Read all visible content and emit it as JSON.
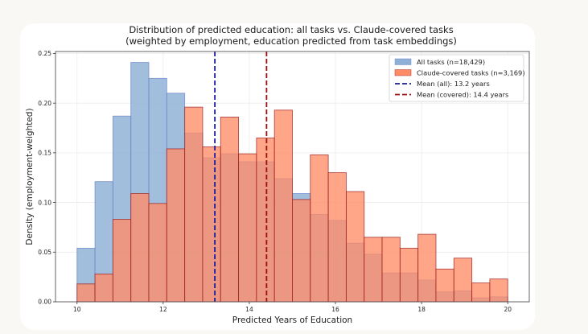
{
  "chart_data": {
    "type": "bar",
    "title": "Distribution of predicted education: all tasks vs. Claude-covered tasks",
    "subtitle": "(weighted by employment, education predicted from task embeddings)",
    "xlabel": "Predicted Years of Education",
    "ylabel": "Density (employment-weighted)",
    "xlim": [
      9.5,
      20.5
    ],
    "ylim": [
      0,
      0.252
    ],
    "xticks": [
      10,
      12,
      14,
      16,
      18,
      20
    ],
    "xtick_labels": [
      "10",
      "12",
      "14",
      "16",
      "18",
      "20"
    ],
    "yticks": [
      0,
      0.05,
      0.1,
      0.15,
      0.2,
      0.25
    ],
    "ytick_labels": [
      "0.00",
      "0.05",
      "0.10",
      "0.15",
      "0.20",
      "0.25"
    ],
    "grid": true,
    "legend_position": "top-right",
    "bin_edges_start": 10,
    "bin_edges_end": 20,
    "bin_count": 24,
    "series": [
      {
        "name": "All tasks (n=18,429)",
        "color": "#8eb0d6",
        "edge_color": "#6a82c8",
        "values": [
          0.054,
          0.121,
          0.187,
          0.241,
          0.225,
          0.21,
          0.17,
          0.145,
          0.149,
          0.141,
          0.141,
          0.124,
          0.109,
          0.088,
          0.082,
          0.059,
          0.048,
          0.029,
          0.029,
          0.022,
          0.01,
          0.011,
          0.004,
          0.005
        ]
      },
      {
        "name": "Claude-covered tasks (n=3,169)",
        "color": "#ff8c66",
        "edge_color": "#9b1c1c",
        "values": [
          0.018,
          0.028,
          0.083,
          0.109,
          0.099,
          0.154,
          0.196,
          0.156,
          0.186,
          0.149,
          0.165,
          0.193,
          0.103,
          0.148,
          0.13,
          0.111,
          0.065,
          0.065,
          0.054,
          0.068,
          0.033,
          0.044,
          0.019,
          0.023
        ]
      }
    ],
    "reference_lines": [
      {
        "name": "Mean (all): 13.2 years",
        "x": 13.2,
        "color": "#1a1aa0",
        "style": "dashed"
      },
      {
        "name": "Mean (covered): 14.4 years",
        "x": 14.4,
        "color": "#9b1010",
        "style": "dashed"
      }
    ]
  }
}
